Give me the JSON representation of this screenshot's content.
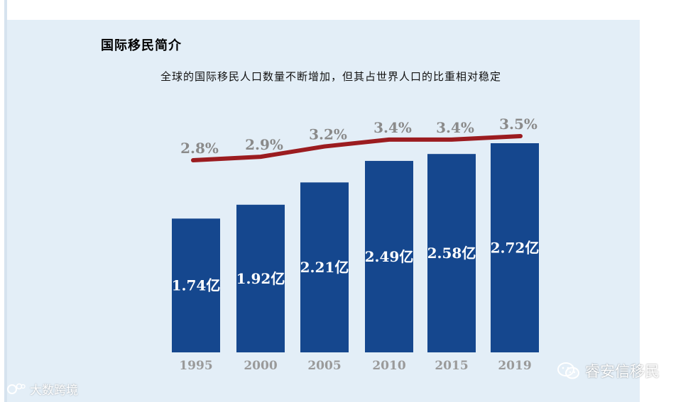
{
  "section_title": "国际移民简介",
  "subtitle": "全球的国际移民人口数量不断增加，但其占世界人口的比重相对稳定",
  "watermark_left": "大数跨境",
  "watermark_right": "睿安信移民",
  "colors": {
    "bar": "#15478e",
    "line": "#9b1c20",
    "pct_label": "#8a8a8a",
    "year_label": "#9a9a9a",
    "panel": "#e3eef7"
  },
  "chart_data": {
    "type": "bar",
    "categories": [
      "1995",
      "2000",
      "2005",
      "2010",
      "2015",
      "2019"
    ],
    "series": [
      {
        "type": "bar",
        "values": [
          1.74,
          1.92,
          2.21,
          2.49,
          2.58,
          2.72
        ],
        "labels": [
          "1.74亿",
          "1.92亿",
          "2.21亿",
          "2.49亿",
          "2.58亿",
          "2.72亿"
        ]
      },
      {
        "type": "line",
        "values": [
          2.8,
          2.9,
          3.2,
          3.4,
          3.4,
          3.5
        ],
        "labels": [
          "2.8%",
          "2.9%",
          "3.2%",
          "3.4%",
          "3.4%",
          "3.5%"
        ]
      }
    ],
    "ylim": [
      0,
      2.72
    ],
    "line_ylim": [
      2.8,
      3.5
    ],
    "legend": "none",
    "grid": false
  }
}
